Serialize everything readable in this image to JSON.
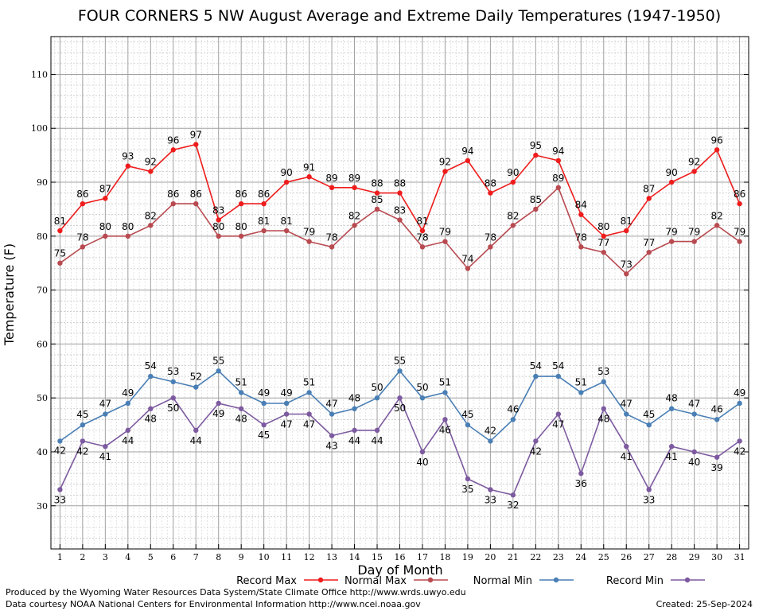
{
  "chart_data": {
    "type": "line",
    "title": "FOUR CORNERS 5 NW August Average and Extreme Daily Temperatures (1947-1950)",
    "xlabel": "Day of Month",
    "ylabel": "Temperature (F)",
    "x": [
      1,
      2,
      3,
      4,
      5,
      6,
      7,
      8,
      9,
      10,
      11,
      12,
      13,
      14,
      15,
      16,
      17,
      18,
      19,
      20,
      21,
      22,
      23,
      24,
      25,
      26,
      27,
      28,
      29,
      30,
      31
    ],
    "xlim": [
      0.6,
      31.4
    ],
    "ylim": [
      22,
      117
    ],
    "yticks": [
      30,
      40,
      50,
      60,
      70,
      80,
      90,
      100,
      110
    ],
    "grid": true,
    "legend_position": "bottom",
    "series": [
      {
        "name": "Record Max",
        "color": "#ee1c1c",
        "values": [
          81,
          86,
          87,
          93,
          92,
          96,
          97,
          83,
          86,
          86,
          90,
          91,
          89,
          89,
          88,
          88,
          81,
          92,
          94,
          88,
          90,
          95,
          94,
          84,
          80,
          81,
          87,
          90,
          92,
          96,
          86
        ]
      },
      {
        "name": "Normal Max",
        "color": "#b84a50",
        "values": [
          75,
          78,
          80,
          80,
          82,
          86,
          86,
          80,
          80,
          81,
          81,
          79,
          78,
          82,
          85,
          83,
          78,
          79,
          74,
          78,
          82,
          85,
          89,
          78,
          77,
          73,
          77,
          79,
          79,
          82,
          79
        ]
      },
      {
        "name": "Normal Min",
        "color": "#4a7fb5",
        "values": [
          42,
          45,
          47,
          49,
          54,
          53,
          52,
          55,
          51,
          49,
          49,
          51,
          47,
          48,
          50,
          55,
          50,
          51,
          45,
          42,
          46,
          54,
          54,
          51,
          53,
          47,
          45,
          48,
          47,
          46,
          49
        ]
      },
      {
        "name": "Record Min",
        "color": "#7d5aa0",
        "values": [
          33,
          42,
          41,
          44,
          48,
          50,
          44,
          49,
          48,
          45,
          47,
          47,
          43,
          44,
          44,
          50,
          40,
          46,
          35,
          33,
          32,
          42,
          47,
          36,
          48,
          41,
          33,
          41,
          40,
          39,
          42
        ]
      }
    ]
  },
  "footer": {
    "line1": "Produced by the Wyoming Water Resources Data System/State Climate Office http://www.wrds.uwyo.edu",
    "line2": "Data courtesy NOAA National Centers for Environmental Information http://www.ncei.noaa.gov",
    "created": "Created:  25-Sep-2024"
  }
}
